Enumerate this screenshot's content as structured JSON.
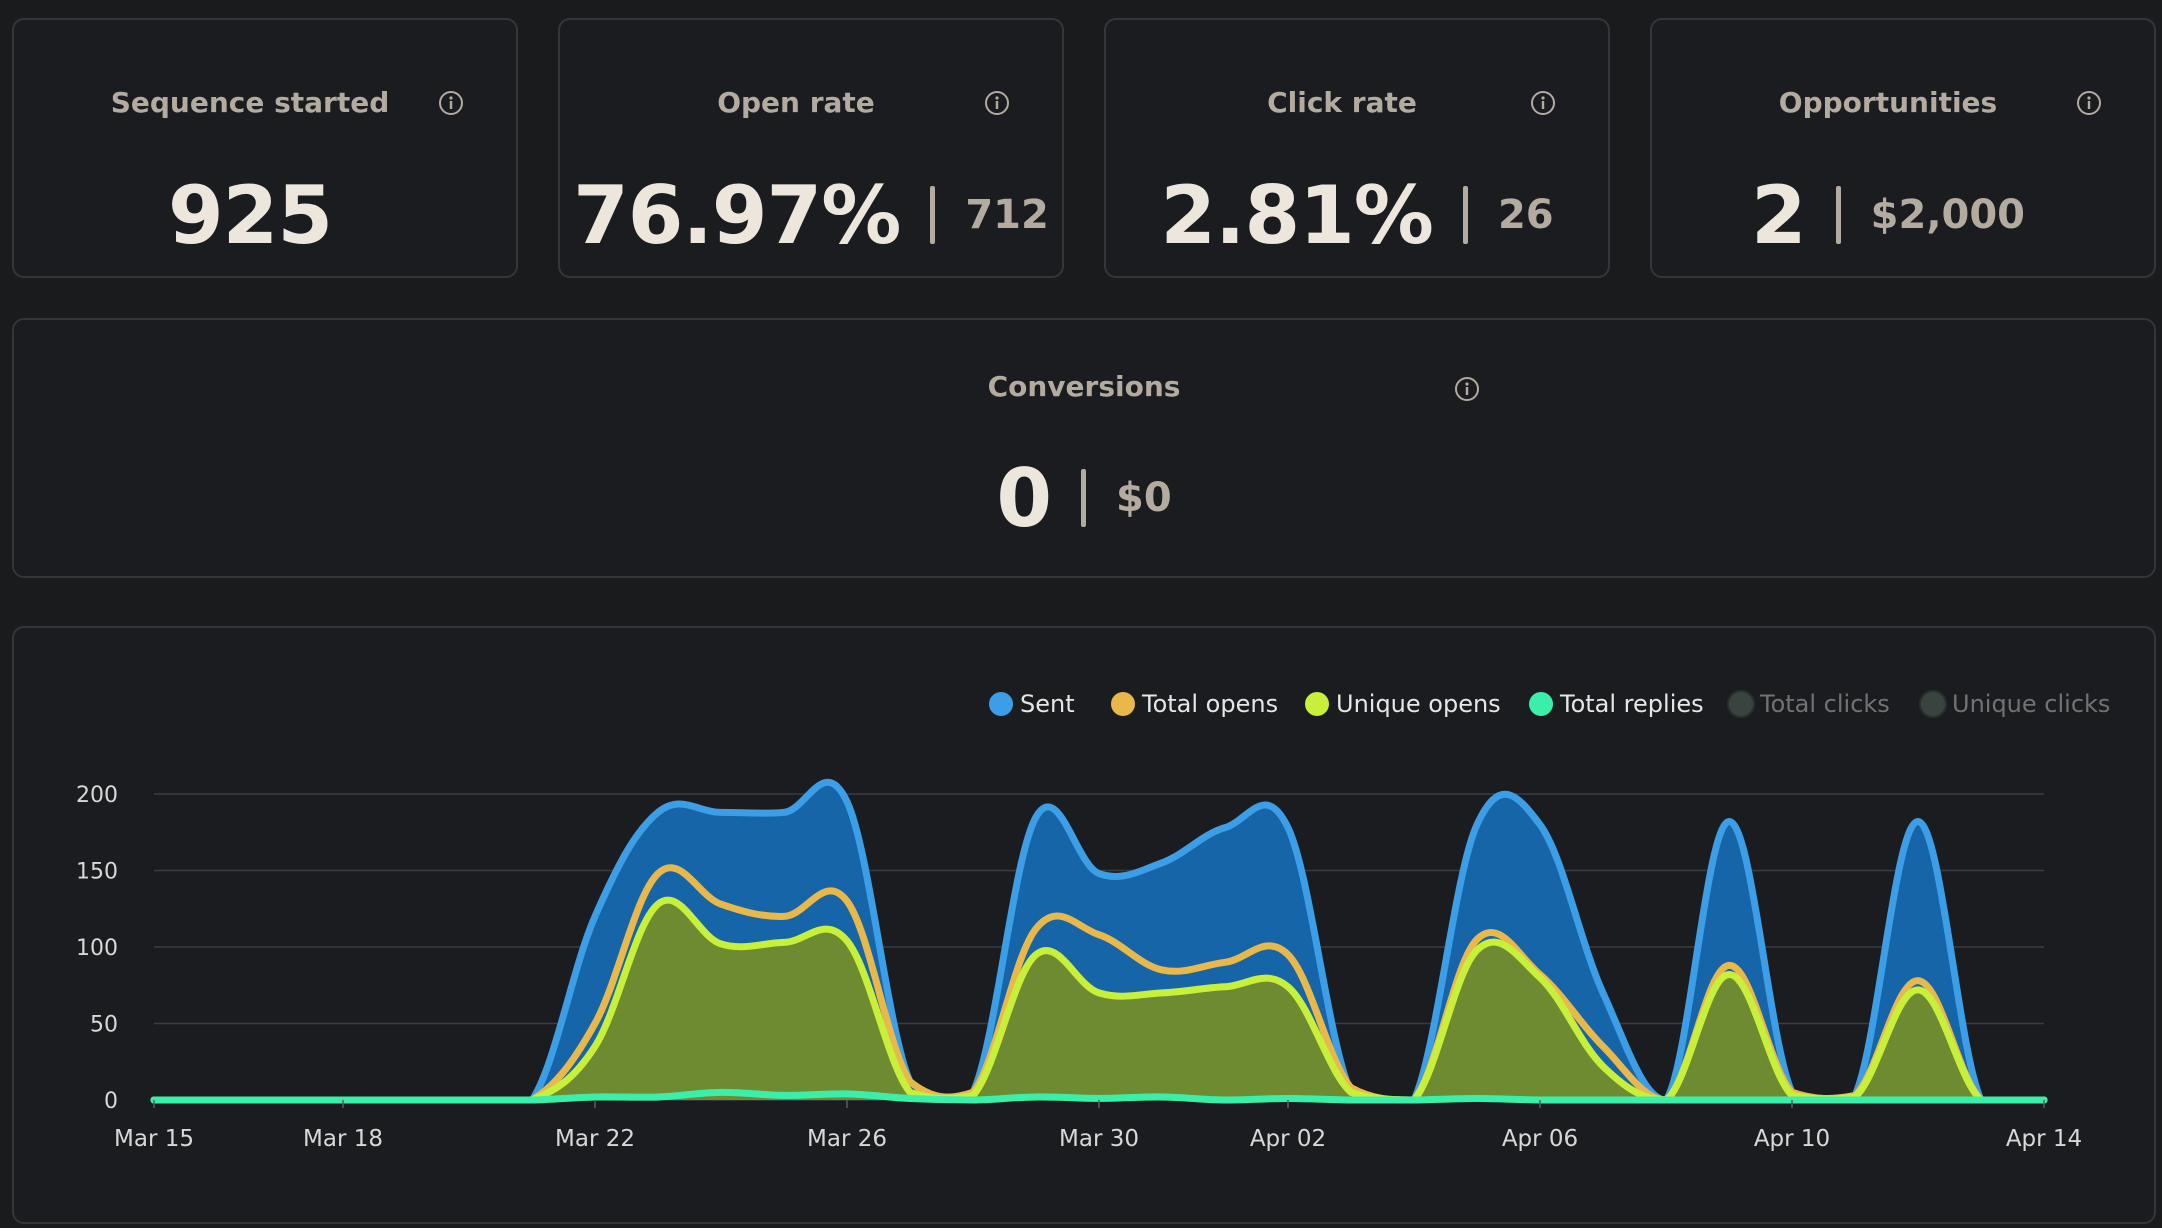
{
  "metrics": [
    {
      "title": "Sequence started",
      "value": "925",
      "sub": ""
    },
    {
      "title": "Open rate",
      "value": "76.97%",
      "sub": "712"
    },
    {
      "title": "Click rate",
      "value": "2.81%",
      "sub": "26"
    },
    {
      "title": "Opportunities",
      "value": "2",
      "sub": "$2,000"
    }
  ],
  "conversions": {
    "title": "Conversions",
    "value": "0",
    "sub": "$0"
  },
  "icons": {
    "info": "info-icon"
  },
  "colors": {
    "sent": "#3b9ee6",
    "sent_fill": "#1565a8",
    "total_opens": "#e8b84a",
    "unique_opens": "#c8f03a",
    "unique_fill": "#6e8b32",
    "total_replies": "#3af0a8",
    "disabled": "#3a4340"
  },
  "chart_data": {
    "type": "area",
    "legend": [
      {
        "name": "Sent",
        "enabled": true
      },
      {
        "name": "Total opens",
        "enabled": true
      },
      {
        "name": "Unique opens",
        "enabled": true
      },
      {
        "name": "Total replies",
        "enabled": true
      },
      {
        "name": "Total clicks",
        "enabled": false
      },
      {
        "name": "Unique clicks",
        "enabled": false
      }
    ],
    "legend_position": "top-right",
    "x_ticks": [
      "Mar 15",
      "Mar 18",
      "Mar 22",
      "Mar 26",
      "Mar 30",
      "Apr 02",
      "Apr 06",
      "Apr 10",
      "Apr 14"
    ],
    "x": [
      "Mar 15",
      "Mar 16",
      "Mar 17",
      "Mar 18",
      "Mar 19",
      "Mar 20",
      "Mar 21",
      "Mar 22",
      "Mar 23",
      "Mar 24",
      "Mar 25",
      "Mar 26",
      "Mar 27",
      "Mar 28",
      "Mar 29",
      "Mar 30",
      "Mar 31",
      "Apr 01",
      "Apr 02",
      "Apr 03",
      "Apr 04",
      "Apr 05",
      "Apr 06",
      "Apr 07",
      "Apr 08",
      "Apr 09",
      "Apr 10",
      "Apr 11",
      "Apr 12",
      "Apr 13",
      "Apr 14"
    ],
    "ylim": [
      0,
      200
    ],
    "y_ticks": [
      0,
      50,
      100,
      150,
      200
    ],
    "grid": true,
    "series": [
      {
        "name": "Sent",
        "values": [
          0,
          0,
          0,
          0,
          0,
          0,
          0,
          120,
          188,
          188,
          188,
          195,
          12,
          5,
          185,
          148,
          155,
          178,
          178,
          5,
          0,
          180,
          180,
          70,
          0,
          182,
          5,
          3,
          182,
          0,
          0
        ]
      },
      {
        "name": "Total opens",
        "values": [
          0,
          0,
          0,
          0,
          0,
          0,
          0,
          50,
          148,
          128,
          120,
          130,
          12,
          5,
          112,
          108,
          85,
          90,
          95,
          8,
          0,
          105,
          82,
          35,
          0,
          88,
          5,
          3,
          78,
          0,
          0
        ]
      },
      {
        "name": "Unique opens",
        "values": [
          0,
          0,
          0,
          0,
          0,
          0,
          0,
          35,
          128,
          102,
          103,
          104,
          5,
          3,
          95,
          70,
          70,
          74,
          74,
          5,
          0,
          98,
          80,
          22,
          0,
          82,
          3,
          2,
          72,
          0,
          0
        ]
      },
      {
        "name": "Total replies",
        "values": [
          0,
          0,
          0,
          0,
          0,
          0,
          0,
          2,
          2,
          5,
          3,
          4,
          1,
          0,
          2,
          1,
          2,
          0,
          1,
          0,
          0,
          1,
          0,
          0,
          0,
          0,
          0,
          0,
          0,
          0,
          0
        ]
      }
    ]
  }
}
